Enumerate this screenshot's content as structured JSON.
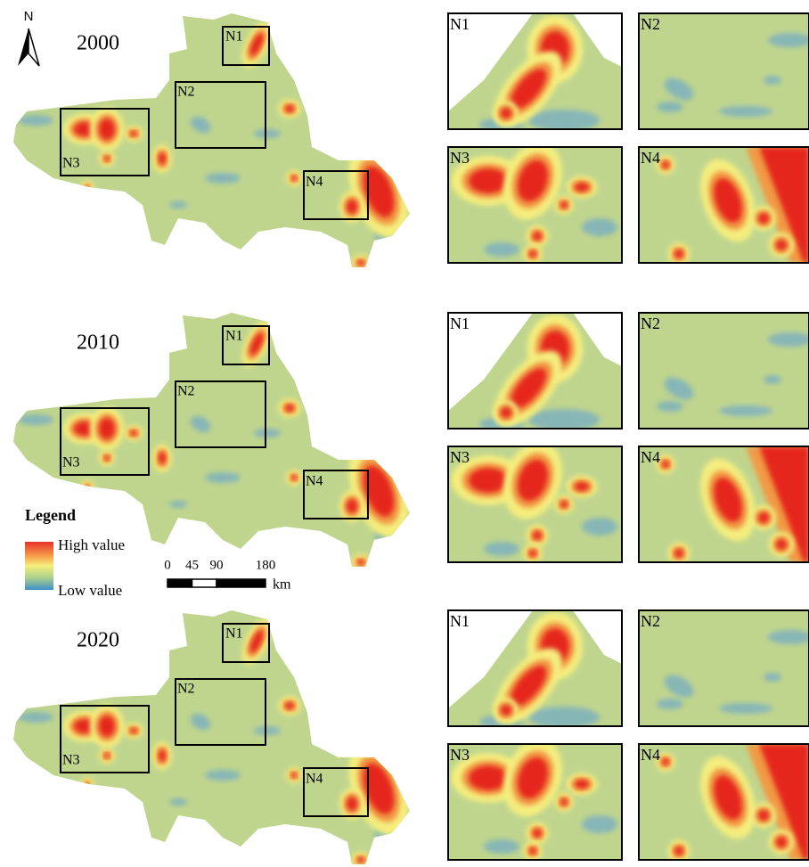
{
  "north": "N",
  "panels": [
    {
      "year": "2000",
      "main_boxes": [
        "N1",
        "N2",
        "N3",
        "N4"
      ],
      "insets": [
        "N1",
        "N2",
        "N3",
        "N4"
      ]
    },
    {
      "year": "2010",
      "main_boxes": [
        "N1",
        "N2",
        "N3",
        "N4"
      ],
      "insets": [
        "N1",
        "N2",
        "N3",
        "N4"
      ]
    },
    {
      "year": "2020",
      "main_boxes": [
        "N1",
        "N2",
        "N3",
        "N4"
      ],
      "insets": [
        "N1",
        "N2",
        "N3",
        "N4"
      ]
    }
  ],
  "legend": {
    "title": "Legend",
    "high": "High value",
    "low": "Low value"
  },
  "scale_bar": {
    "ticks": [
      0,
      45,
      90,
      180
    ],
    "unit": "km"
  }
}
